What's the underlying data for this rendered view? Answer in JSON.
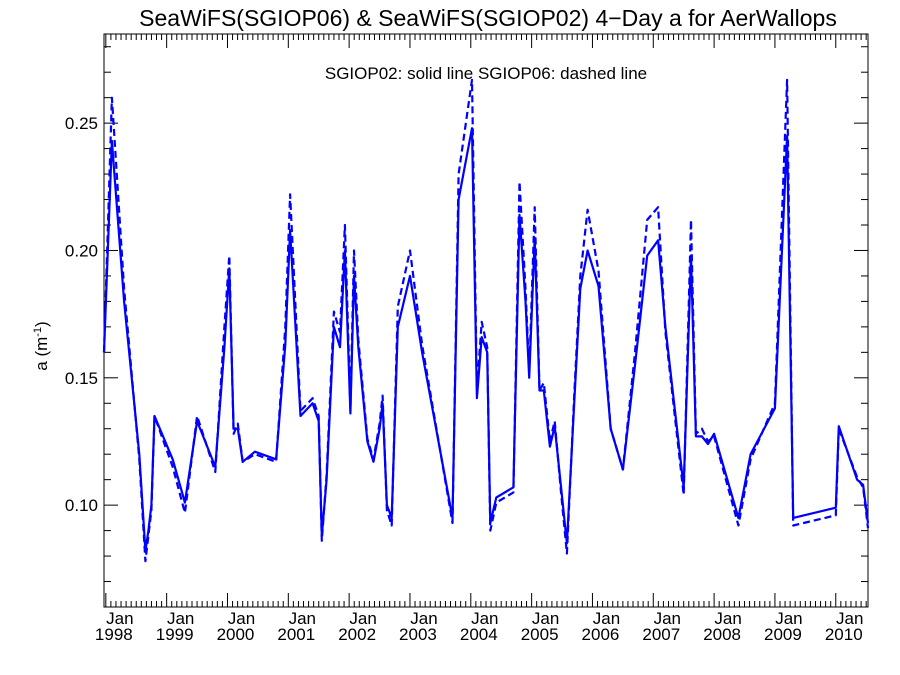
{
  "chart_data": {
    "type": "line",
    "title": "SeaWiFS(SGIOP06) & SeaWiFS(SGIOP02) 4−Day a for AerWallops",
    "annotation": "SGIOP02: solid line   SGIOP06: dashed line",
    "ylabel_main": "a (m",
    "ylabel_sup": "-1",
    "ylabel_close": ")",
    "xlim": [
      1997.97,
      2010.53
    ],
    "ylim": [
      0.06,
      0.285
    ],
    "grid": false,
    "y_ticks": [
      0.1,
      0.15,
      0.2,
      0.25
    ],
    "y_tick_labels": [
      "0.10",
      "0.15",
      "0.20",
      "0.25"
    ],
    "x_ticks": [
      1998,
      1999,
      2000,
      2001,
      2002,
      2003,
      2004,
      2005,
      2006,
      2007,
      2008,
      2009,
      2010
    ],
    "x_tick_month": "Jan",
    "x_tick_years": [
      "1998",
      "1999",
      "2000",
      "2001",
      "2002",
      "2003",
      "2004",
      "2005",
      "2006",
      "2007",
      "2008",
      "2009",
      "2010"
    ],
    "line_color": "#0000ff",
    "series": [
      {
        "name": "SGIOP02",
        "style": "solid",
        "x": [
          1997.97,
          1998.1,
          1998.3,
          1998.55,
          1998.65,
          1998.7,
          1998.75,
          1998.8,
          1999.1,
          1999.3,
          1999.5,
          1999.8,
          1999.95,
          2000.03,
          2000.1,
          2000.17,
          2000.25,
          2000.45,
          2000.8,
          2000.95,
          2001.03,
          2001.2,
          2001.4,
          2001.5,
          2001.55,
          2001.63,
          2001.75,
          2001.85,
          2001.93,
          2002.02,
          2002.08,
          2002.15,
          2002.3,
          2002.4,
          2002.5,
          2002.55,
          2002.62,
          2002.7,
          2002.8,
          2003.0,
          2003.2,
          2003.7,
          2003.8,
          2004.02,
          2004.1,
          2004.18,
          2004.27,
          2004.32,
          2004.42,
          2004.7,
          2004.8,
          2004.9,
          2004.96,
          2005.05,
          2005.13,
          2005.2,
          2005.3,
          2005.38,
          2005.48,
          2005.58,
          2005.7,
          2005.8,
          2005.92,
          2006.1,
          2006.3,
          2006.5,
          2006.7,
          2006.9,
          2007.08,
          2007.2,
          2007.5,
          2007.62,
          2007.7,
          2007.8,
          2007.9,
          2008.0,
          2008.4,
          2008.6,
          2009.0,
          2009.2,
          2009.3,
          2010.0,
          2010.05,
          2010.35,
          2010.45,
          2010.53
        ],
        "values": [
          0.16,
          0.243,
          0.18,
          0.12,
          0.082,
          0.09,
          0.1,
          0.135,
          0.118,
          0.101,
          0.133,
          0.115,
          0.162,
          0.193,
          0.13,
          0.13,
          0.117,
          0.121,
          0.118,
          0.163,
          0.208,
          0.135,
          0.14,
          0.133,
          0.088,
          0.11,
          0.17,
          0.162,
          0.2,
          0.136,
          0.19,
          0.162,
          0.125,
          0.117,
          0.13,
          0.14,
          0.1,
          0.095,
          0.17,
          0.19,
          0.16,
          0.095,
          0.22,
          0.248,
          0.142,
          0.166,
          0.16,
          0.093,
          0.103,
          0.107,
          0.214,
          0.18,
          0.15,
          0.205,
          0.145,
          0.145,
          0.123,
          0.131,
          0.108,
          0.085,
          0.14,
          0.185,
          0.2,
          0.186,
          0.13,
          0.114,
          0.155,
          0.198,
          0.204,
          0.17,
          0.107,
          0.198,
          0.127,
          0.127,
          0.124,
          0.128,
          0.095,
          0.12,
          0.138,
          0.245,
          0.095,
          0.099,
          0.131,
          0.11,
          0.108,
          0.093
        ]
      },
      {
        "name": "SGIOP06",
        "style": "dashed",
        "x": [
          1997.97,
          1998.1,
          1998.3,
          1998.55,
          1998.65,
          1998.7,
          1998.75,
          1998.8,
          1999.1,
          1999.3,
          1999.5,
          1999.8,
          1999.95,
          2000.03,
          2000.1,
          2000.17,
          2000.25,
          2000.45,
          2000.8,
          2000.95,
          2001.03,
          2001.2,
          2001.4,
          2001.5,
          2001.55,
          2001.63,
          2001.75,
          2001.85,
          2001.93,
          2002.02,
          2002.08,
          2002.15,
          2002.3,
          2002.4,
          2002.5,
          2002.55,
          2002.62,
          2002.7,
          2002.8,
          2003.0,
          2003.2,
          2003.7,
          2003.8,
          2004.02,
          2004.1,
          2004.18,
          2004.27,
          2004.32,
          2004.42,
          2004.7,
          2004.8,
          2004.9,
          2004.96,
          2005.05,
          2005.13,
          2005.2,
          2005.3,
          2005.38,
          2005.48,
          2005.58,
          2005.7,
          2005.8,
          2005.92,
          2006.1,
          2006.3,
          2006.5,
          2006.7,
          2006.9,
          2007.08,
          2007.2,
          2007.5,
          2007.62,
          2007.7,
          2007.8,
          2007.9,
          2008.0,
          2008.4,
          2008.6,
          2009.0,
          2009.2,
          2009.3,
          2010.0,
          2010.05,
          2010.35,
          2010.45,
          2010.53
        ],
        "values": [
          0.16,
          0.26,
          0.185,
          0.118,
          0.078,
          0.088,
          0.098,
          0.135,
          0.115,
          0.097,
          0.135,
          0.113,
          0.17,
          0.198,
          0.128,
          0.132,
          0.117,
          0.12,
          0.117,
          0.17,
          0.222,
          0.137,
          0.142,
          0.135,
          0.086,
          0.112,
          0.176,
          0.168,
          0.21,
          0.138,
          0.2,
          0.165,
          0.126,
          0.118,
          0.132,
          0.143,
          0.098,
          0.092,
          0.178,
          0.2,
          0.163,
          0.093,
          0.23,
          0.267,
          0.145,
          0.172,
          0.162,
          0.09,
          0.101,
          0.105,
          0.227,
          0.185,
          0.152,
          0.217,
          0.145,
          0.148,
          0.125,
          0.133,
          0.106,
          0.081,
          0.143,
          0.19,
          0.216,
          0.192,
          0.13,
          0.114,
          0.16,
          0.212,
          0.217,
          0.168,
          0.104,
          0.212,
          0.128,
          0.13,
          0.125,
          0.127,
          0.092,
          0.118,
          0.14,
          0.267,
          0.092,
          0.096,
          0.13,
          0.111,
          0.107,
          0.091
        ]
      }
    ]
  }
}
